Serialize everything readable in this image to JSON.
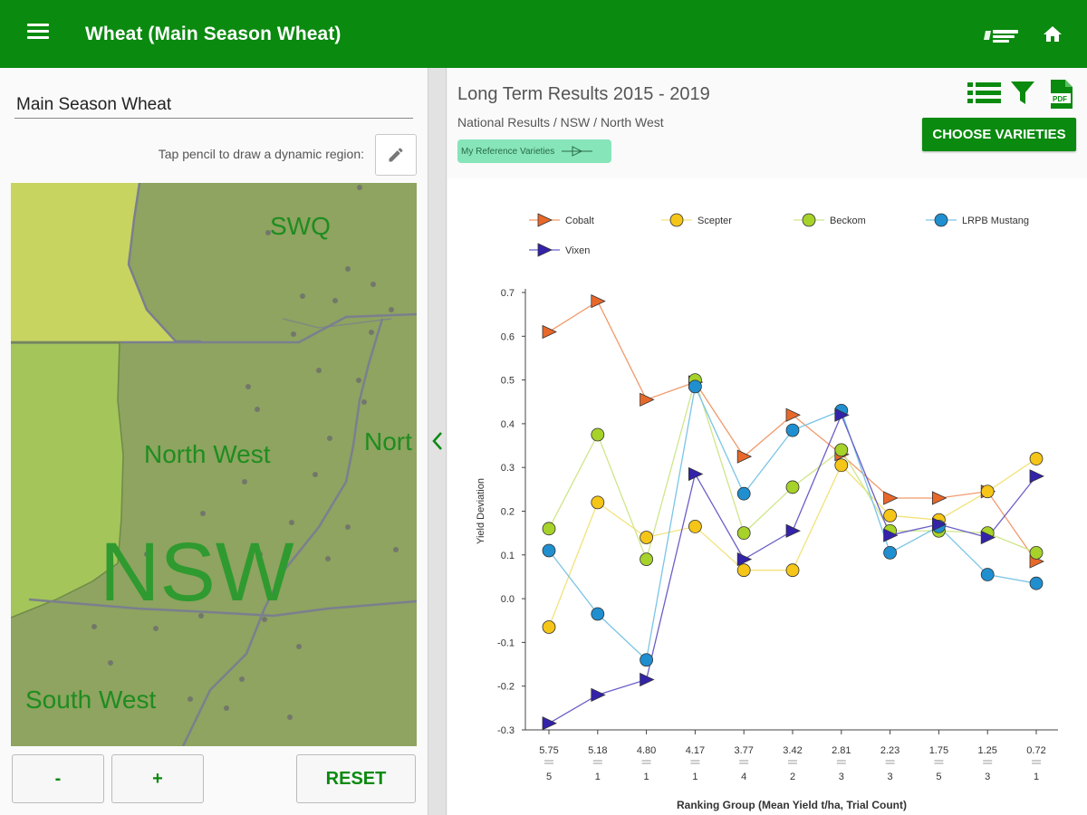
{
  "app": {
    "title": "Wheat (Main Season Wheat)"
  },
  "left": {
    "trial_name": "Main Season Wheat",
    "pencil_hint": "Tap pencil to draw a dynamic region:",
    "regions": {
      "swq": "SWQ",
      "north_west": "North West",
      "nsw": "NSW",
      "north_east_partial": "Nort",
      "south_west": "South West"
    },
    "buttons": {
      "minus": "-",
      "plus": "+",
      "reset": "RESET"
    }
  },
  "right": {
    "title": "Long Term Results 2015 - 2019",
    "breadcrumb": "National Results / NSW / North West",
    "ref_chip": "My Reference Varieties",
    "choose_button": "CHOOSE VARIETIES"
  },
  "colors": {
    "appbar": "#0a8a0f",
    "accent": "#0a8a0f",
    "chip": "#86e5b9"
  },
  "chart_data": {
    "type": "line",
    "title": "",
    "xlabel": "Ranking Group (Mean Yield t/ha, Trial Count)",
    "ylabel": "Yield Deviation",
    "ylim": [
      -0.3,
      0.7
    ],
    "yticks": [
      "0.7",
      "0.6",
      "0.5",
      "0.4",
      "0.3",
      "0.2",
      "0.1",
      "0.0",
      "-0.1",
      "-0.2",
      "-0.3"
    ],
    "categories": [
      "5.75",
      "5.18",
      "4.80",
      "4.17",
      "3.77",
      "3.42",
      "2.81",
      "2.23",
      "1.75",
      "1.25",
      "0.72"
    ],
    "trial_counts": [
      "5",
      "1",
      "1",
      "1",
      "4",
      "2",
      "3",
      "3",
      "5",
      "3",
      "1"
    ],
    "legend_position": "top",
    "series": [
      {
        "name": "Cobalt",
        "color": "#e8682a",
        "line": "#f09a6c",
        "marker": "triangle",
        "values": [
          0.61,
          0.68,
          0.455,
          0.495,
          0.325,
          0.42,
          0.33,
          0.23,
          0.23,
          0.245,
          0.085
        ]
      },
      {
        "name": "Scepter",
        "color": "#f5c518",
        "line": "#f3e27a",
        "marker": "circle",
        "values": [
          -0.065,
          0.22,
          0.14,
          0.165,
          0.065,
          0.065,
          0.305,
          0.19,
          0.18,
          0.245,
          0.32
        ]
      },
      {
        "name": "Beckom",
        "color": "#a6d22a",
        "line": "#cfe68a",
        "marker": "circle",
        "values": [
          0.16,
          0.375,
          0.09,
          0.5,
          0.15,
          0.255,
          0.34,
          0.155,
          0.155,
          0.15,
          0.105
        ]
      },
      {
        "name": "LRPB Mustang",
        "color": "#1f8fd0",
        "line": "#7cc4e6",
        "marker": "circle",
        "values": [
          0.11,
          -0.035,
          -0.14,
          0.485,
          0.24,
          0.385,
          0.43,
          0.105,
          0.165,
          0.055,
          0.035
        ]
      },
      {
        "name": "Vixen",
        "color": "#3322aa",
        "line": "#6a5fc8",
        "marker": "triangle",
        "values": [
          -0.285,
          -0.22,
          -0.185,
          0.285,
          0.09,
          0.155,
          0.42,
          0.145,
          0.17,
          0.14,
          0.28
        ]
      }
    ]
  }
}
